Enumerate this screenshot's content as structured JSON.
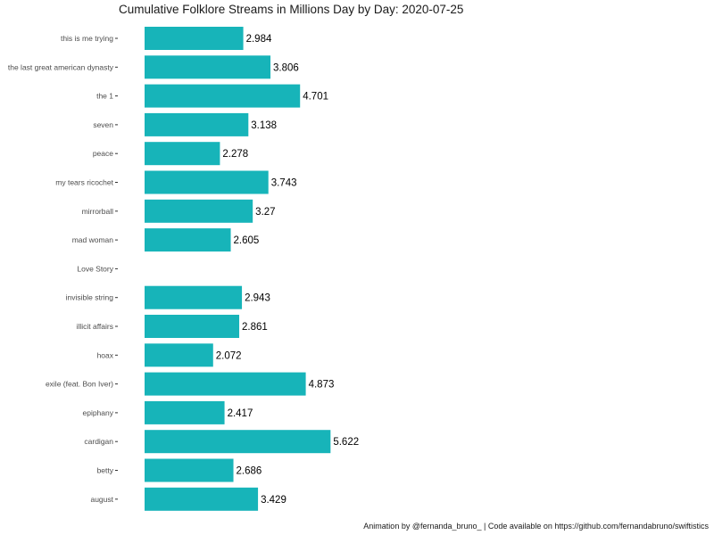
{
  "chart_data": {
    "type": "bar",
    "orientation": "horizontal",
    "title": "Cumulative Folklore Streams in Millions Day by Day: 2020-07-25",
    "caption": "Animation by @fernanda_bruno_ | Code available on https://github.com/fernandabruno/swiftistics",
    "xlabel": "",
    "ylabel": "",
    "xlim": [
      0,
      17
    ],
    "grid": false,
    "legend": "none",
    "bar_color": "#17b4b9",
    "categories": [
      "this is me trying",
      "the last great american dynasty",
      "the 1",
      "seven",
      "peace",
      "my tears ricochet",
      "mirrorball",
      "mad woman",
      "Love Story",
      "invisible string",
      "illicit affairs",
      "hoax",
      "exile (feat. Bon Iver)",
      "epiphany",
      "cardigan",
      "betty",
      "august"
    ],
    "values": [
      2.984,
      3.806,
      4.701,
      3.138,
      2.278,
      3.743,
      3.27,
      2.605,
      null,
      2.943,
      2.861,
      2.072,
      4.873,
      2.417,
      5.622,
      2.686,
      3.429
    ],
    "value_labels": [
      "2.984",
      "3.806",
      "4.701",
      "3.138",
      "2.278",
      "3.743",
      "3.27",
      "2.605",
      "",
      "2.943",
      "2.861",
      "2.072",
      "4.873",
      "2.417",
      "5.622",
      "2.686",
      "3.429"
    ]
  }
}
